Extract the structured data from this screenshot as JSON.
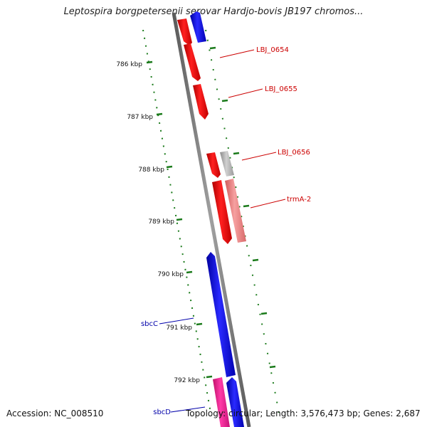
{
  "title": "Leptospira borgpetersenii serovar Hardjo-bovis JB197 chromos...",
  "footer": {
    "accession": "Accession: NC_008510",
    "summary": "Topology: circular; Length: 3,576,473 bp; Genes: 2,687"
  },
  "colors": {
    "backbone": "#8a8a8a",
    "tick": "#1a7a1a",
    "forward_gene": "#ff0000",
    "reverse_gene": "#0000ff",
    "pseudo_gene": "#b0b0b0",
    "rna_gene": "#f08080",
    "other_gene": "#ff1493",
    "label_forward": "#cc0000",
    "label_reverse": "#0000aa"
  },
  "ruler": {
    "unit": "kbp",
    "ticks": [
      "786 kbp",
      "787 kbp",
      "788 kbp",
      "789 kbp",
      "790 kbp",
      "791 kbp",
      "792 kbp"
    ]
  },
  "gene_labels": [
    {
      "name": "LBJ_0654",
      "strand": "forward"
    },
    {
      "name": "LBJ_0655",
      "strand": "forward"
    },
    {
      "name": "LBJ_0656",
      "strand": "forward"
    },
    {
      "name": "trmA-2",
      "strand": "forward"
    },
    {
      "name": "sbcC",
      "strand": "reverse"
    },
    {
      "name": "sbcD",
      "strand": "reverse"
    }
  ]
}
